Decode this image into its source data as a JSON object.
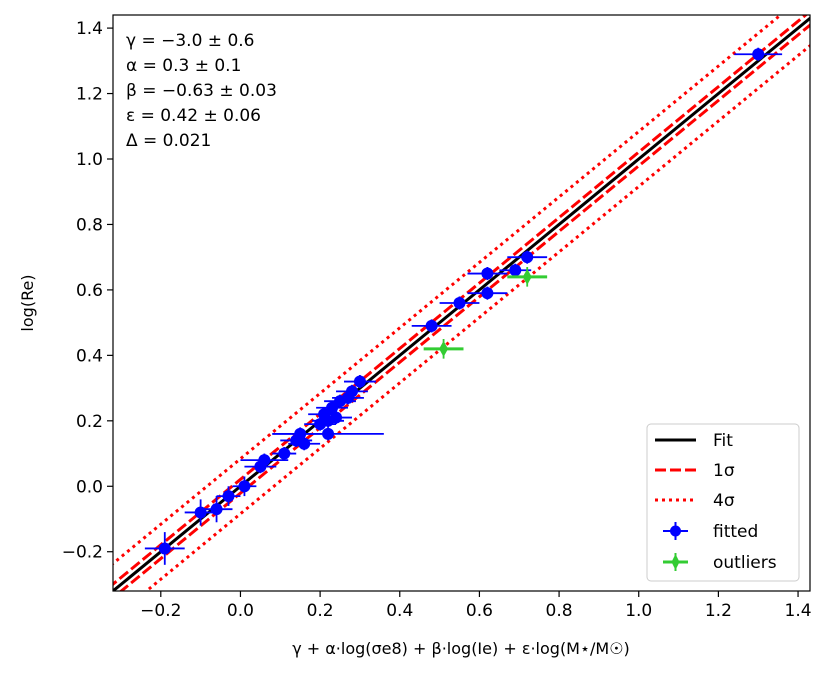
{
  "chart_data": {
    "type": "scatter",
    "xlabel": "γ + α·log(σe8) + β·log(Ie) + ε·log(M⋆/M☉)",
    "ylabel": "log(Re)",
    "xlim": [
      -0.32,
      1.43
    ],
    "ylim": [
      -0.32,
      1.44
    ],
    "xticks": [
      -0.2,
      0.0,
      0.2,
      0.4,
      0.6,
      0.8,
      1.0,
      1.2,
      1.4
    ],
    "xtick_labels": [
      "−0.2",
      "0.0",
      "0.2",
      "0.4",
      "0.6",
      "0.8",
      "1.0",
      "1.2",
      "1.4"
    ],
    "yticks": [
      -0.2,
      0.0,
      0.2,
      0.4,
      0.6,
      0.8,
      1.0,
      1.2,
      1.4
    ],
    "ytick_labels": [
      "−0.2",
      "0.0",
      "0.2",
      "0.4",
      "0.6",
      "0.8",
      "1.0",
      "1.2",
      "1.4"
    ],
    "grid": false,
    "legend_position": "lower-right",
    "annotations": [
      "γ = −3.0 ± 0.6",
      "α = 0.3 ± 0.1",
      "β = −0.63 ± 0.03",
      "ε = 0.42 ± 0.06",
      "Δ = 0.021"
    ],
    "lines": [
      {
        "name": "Fit",
        "color": "#000000",
        "style": "solid",
        "intercept": 0.0
      },
      {
        "name": "1σ",
        "color": "#ff0000",
        "style": "dashed",
        "intercept": 0.021
      },
      {
        "name": "1σ",
        "color": "#ff0000",
        "style": "dashed",
        "intercept": -0.021
      },
      {
        "name": "4σ",
        "color": "#ff0000",
        "style": "dotted",
        "intercept": 0.084
      },
      {
        "name": "4σ",
        "color": "#ff0000",
        "style": "dotted",
        "intercept": -0.084
      }
    ],
    "series": [
      {
        "name": "fitted",
        "color": "#0000ff",
        "marker": "circle",
        "points": [
          {
            "x": -0.19,
            "y": -0.19,
            "xerr": 0.05,
            "yerr": 0.05
          },
          {
            "x": -0.1,
            "y": -0.08,
            "xerr": 0.04,
            "yerr": 0.04
          },
          {
            "x": -0.06,
            "y": -0.07,
            "xerr": 0.04,
            "yerr": 0.04
          },
          {
            "x": -0.03,
            "y": -0.03,
            "xerr": 0.03,
            "yerr": 0.03
          },
          {
            "x": 0.01,
            "y": 0.0,
            "xerr": 0.03,
            "yerr": 0.03
          },
          {
            "x": 0.05,
            "y": 0.06,
            "xerr": 0.04,
            "yerr": 0.02
          },
          {
            "x": 0.06,
            "y": 0.08,
            "xerr": 0.06,
            "yerr": 0.02
          },
          {
            "x": 0.11,
            "y": 0.1,
            "xerr": 0.03,
            "yerr": 0.02
          },
          {
            "x": 0.14,
            "y": 0.14,
            "xerr": 0.04,
            "yerr": 0.02
          },
          {
            "x": 0.15,
            "y": 0.16,
            "xerr": 0.07,
            "yerr": 0.02
          },
          {
            "x": 0.16,
            "y": 0.13,
            "xerr": 0.04,
            "yerr": 0.02
          },
          {
            "x": 0.2,
            "y": 0.19,
            "xerr": 0.04,
            "yerr": 0.02
          },
          {
            "x": 0.22,
            "y": 0.16,
            "xerr": 0.14,
            "yerr": 0.02
          },
          {
            "x": 0.21,
            "y": 0.22,
            "xerr": 0.04,
            "yerr": 0.02
          },
          {
            "x": 0.22,
            "y": 0.2,
            "xerr": 0.04,
            "yerr": 0.02
          },
          {
            "x": 0.23,
            "y": 0.24,
            "xerr": 0.04,
            "yerr": 0.02
          },
          {
            "x": 0.24,
            "y": 0.21,
            "xerr": 0.04,
            "yerr": 0.02
          },
          {
            "x": 0.25,
            "y": 0.26,
            "xerr": 0.04,
            "yerr": 0.02
          },
          {
            "x": 0.27,
            "y": 0.27,
            "xerr": 0.04,
            "yerr": 0.02
          },
          {
            "x": 0.28,
            "y": 0.29,
            "xerr": 0.04,
            "yerr": 0.02
          },
          {
            "x": 0.3,
            "y": 0.32,
            "xerr": 0.04,
            "yerr": 0.02
          },
          {
            "x": 0.48,
            "y": 0.49,
            "xerr": 0.05,
            "yerr": 0.02
          },
          {
            "x": 0.55,
            "y": 0.56,
            "xerr": 0.05,
            "yerr": 0.02
          },
          {
            "x": 0.62,
            "y": 0.59,
            "xerr": 0.05,
            "yerr": 0.02
          },
          {
            "x": 0.62,
            "y": 0.65,
            "xerr": 0.05,
            "yerr": 0.02
          },
          {
            "x": 0.69,
            "y": 0.66,
            "xerr": 0.04,
            "yerr": 0.02
          },
          {
            "x": 0.72,
            "y": 0.7,
            "xerr": 0.05,
            "yerr": 0.02
          },
          {
            "x": 1.3,
            "y": 1.32,
            "xerr": 0.06,
            "yerr": 0.02
          }
        ]
      },
      {
        "name": "outliers",
        "color": "#33cc33",
        "marker": "thin_diamond",
        "points": [
          {
            "x": 0.51,
            "y": 0.42,
            "xerr": 0.05,
            "yerr": 0.03
          },
          {
            "x": 0.72,
            "y": 0.64,
            "xerr": 0.05,
            "yerr": 0.03
          }
        ]
      }
    ],
    "legend": [
      "Fit",
      "1σ",
      "4σ",
      "fitted",
      "outliers"
    ]
  }
}
